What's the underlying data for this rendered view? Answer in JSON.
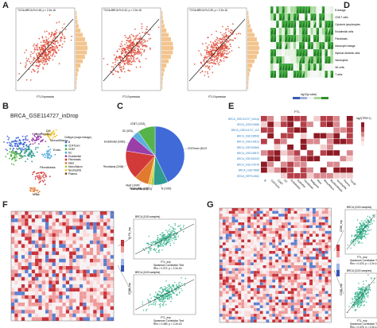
{
  "panels": {
    "A": {
      "label": "A",
      "xlabel": "FTL Expression",
      "scatter": [
        {
          "subtitle": "TCGA-BRCA  R=0.48, p < 2.2e-16"
        },
        {
          "subtitle": "TCGA-BRCA  R=0.42, p < 2.2e-16"
        },
        {
          "subtitle": "TCGA-BRCA  R=0.39, p < 2.2e-16"
        }
      ]
    },
    "B": {
      "label": "B",
      "title": "BRCA_GSE114727_inDrop",
      "legend_title": "Celltype (major-lineage)",
      "legend": [
        "B",
        "CD4Tconv",
        "CD8T",
        "DC",
        "Endothelial",
        "Fibroblasts",
        "Mast",
        "Mono/Macro",
        "Neutrophils",
        "Plasma"
      ],
      "cluster_labels": [
        "DC",
        "Neutrophils",
        "Mono/Macro",
        "Fibroblasts",
        "Mast",
        "Endo"
      ]
    },
    "C": {
      "label": "C",
      "slices": [
        {
          "name": "CD4Tconv (5413)",
          "value": 5413,
          "color": "#3f6ad8"
        },
        {
          "name": "B (1000)",
          "value": 1000,
          "color": "#2f9c8f"
        },
        {
          "name": "Mono/Macro (174)",
          "value": 174,
          "color": "#a6cf3b"
        },
        {
          "name": "Neutrophils (185)",
          "value": 185,
          "color": "#f2c12e"
        },
        {
          "name": "Mast (1004)",
          "value": 1004,
          "color": "#e07a2f"
        },
        {
          "name": "Fibroblasts (2008)",
          "value": 2008,
          "color": "#d23a3a"
        },
        {
          "name": "Endothelial (1086)",
          "value": 1086,
          "color": "#9a3fa8"
        },
        {
          "name": "DC (503)",
          "value": 503,
          "color": "#5ab0e0"
        },
        {
          "name": "CD8T (1232)",
          "value": 1232,
          "color": "#55b34a"
        }
      ]
    },
    "D": {
      "label": "D",
      "rows": [
        "B lineage",
        "CD8 T cells",
        "Cytotoxic lymphocytes",
        "Endothelial cells",
        "Fibroblasts",
        "Monocytic lineage",
        "Myeloid dendritic cells",
        "Neutrophils",
        "NK cells",
        "T cells"
      ],
      "legend_title": "log10(p value)"
    },
    "E": {
      "label": "E",
      "title": "FTL",
      "legend_title": "log2(TPM+1)",
      "rows": [
        "BRCA_GSE114727_inDrop",
        "BRCA_GSE110686",
        "BRCA_GSE114727_10X",
        "BRCA_GSE138536",
        "BRCA_GSE143423",
        "BRCA_GSE150660",
        "BRCA_GSE148673",
        "BRCA_GSE161529",
        "BRCA_GSE176078",
        "BRCA_GSE75688",
        "BRCA_SRP114962"
      ],
      "cols": [
        "B",
        "CD4Tconv",
        "CD8T",
        "DC",
        "Endothelial",
        "Epithelial",
        "Fibroblasts",
        "Malignant",
        "Mast",
        "Mono/Macro",
        "Myofibroblasts",
        "Neutrophils",
        "Plasma",
        "Tprolif"
      ]
    },
    "F": {
      "label": "F",
      "mini": [
        {
          "title": "BRCA (1100 samples)",
          "xlabel": "FTL_exp",
          "ylabel": "SLFN_exp",
          "stat": "Spearman Correlation Test",
          "stat2": "Rho = 0.372, p = 2.2e-16"
        },
        {
          "title": "BRCA (1100 samples)",
          "xlabel": "FTL_exp",
          "ylabel": "CD86_exp",
          "stat": "Spearman Correlation Test",
          "stat2": "Rho = 0.489, p = 2.2e-16"
        }
      ]
    },
    "G": {
      "label": "G",
      "mini": [
        {
          "title": "BRCA (1100 samples)",
          "xlabel": "FTL_exp",
          "ylabel": "CD86_exp",
          "stat": "Spearman Correlation Test",
          "stat2": "Rho = 0.476, p = 2.2e-16"
        },
        {
          "title": "BRCA (1100 samples)",
          "xlabel": "FTL_exp",
          "ylabel": "CD86_exp",
          "stat": "Spearman Correlation Test",
          "stat2": "Rho = 0.476, p = 2.2e-16"
        }
      ]
    }
  }
}
